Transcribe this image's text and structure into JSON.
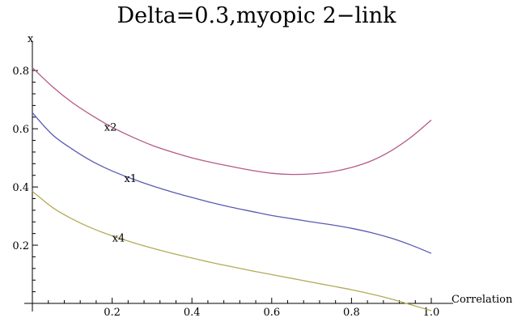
{
  "chart_data": {
    "type": "line",
    "title": "Delta=0.3,myopic 2−link",
    "xlabel": "Correlation",
    "ylabel": "x",
    "xlim": [
      0,
      1.0
    ],
    "ylim": [
      0,
      0.82
    ],
    "xticks": [
      0.2,
      0.4,
      0.6,
      0.8,
      1.0
    ],
    "xtick_labels": [
      "0.2",
      "0.4",
      "0.6",
      "0.8",
      "1.0"
    ],
    "yticks": [
      0.2,
      0.4,
      0.6,
      0.8
    ],
    "ytick_labels": [
      "0.2",
      "0.4",
      "0.6",
      "0.8"
    ],
    "grid": false,
    "legend": "none",
    "series": [
      {
        "name": "x2",
        "color": "#b45a87",
        "label_at": 0.2,
        "x": [
          0.0,
          0.05,
          0.1,
          0.15,
          0.2,
          0.25,
          0.3,
          0.35,
          0.4,
          0.45,
          0.5,
          0.55,
          0.6,
          0.65,
          0.7,
          0.75,
          0.8,
          0.85,
          0.9,
          0.95,
          1.0
        ],
        "y": [
          0.81,
          0.745,
          0.69,
          0.645,
          0.605,
          0.572,
          0.543,
          0.52,
          0.5,
          0.484,
          0.47,
          0.457,
          0.447,
          0.443,
          0.445,
          0.452,
          0.467,
          0.49,
          0.525,
          0.572,
          0.63
        ]
      },
      {
        "name": "x1",
        "color": "#5a5ab4",
        "label_at": 0.25,
        "x": [
          0.0,
          0.05,
          0.1,
          0.15,
          0.2,
          0.25,
          0.3,
          0.35,
          0.4,
          0.45,
          0.5,
          0.55,
          0.6,
          0.65,
          0.7,
          0.75,
          0.8,
          0.85,
          0.9,
          0.95,
          1.0
        ],
        "y": [
          0.655,
          0.58,
          0.53,
          0.488,
          0.455,
          0.428,
          0.404,
          0.383,
          0.364,
          0.346,
          0.33,
          0.316,
          0.302,
          0.291,
          0.28,
          0.27,
          0.258,
          0.243,
          0.224,
          0.2,
          0.172
        ]
      },
      {
        "name": "x4",
        "color": "#b4aa5a",
        "label_at": 0.22,
        "x": [
          0.0,
          0.05,
          0.1,
          0.15,
          0.2,
          0.25,
          0.3,
          0.35,
          0.4,
          0.45,
          0.5,
          0.55,
          0.6,
          0.65,
          0.7,
          0.75,
          0.8,
          0.85,
          0.9,
          0.95,
          1.0
        ],
        "y": [
          0.385,
          0.33,
          0.29,
          0.258,
          0.232,
          0.21,
          0.19,
          0.172,
          0.156,
          0.14,
          0.126,
          0.112,
          0.099,
          0.086,
          0.073,
          0.06,
          0.047,
          0.032,
          0.015,
          -0.005,
          -0.025
        ]
      }
    ]
  }
}
